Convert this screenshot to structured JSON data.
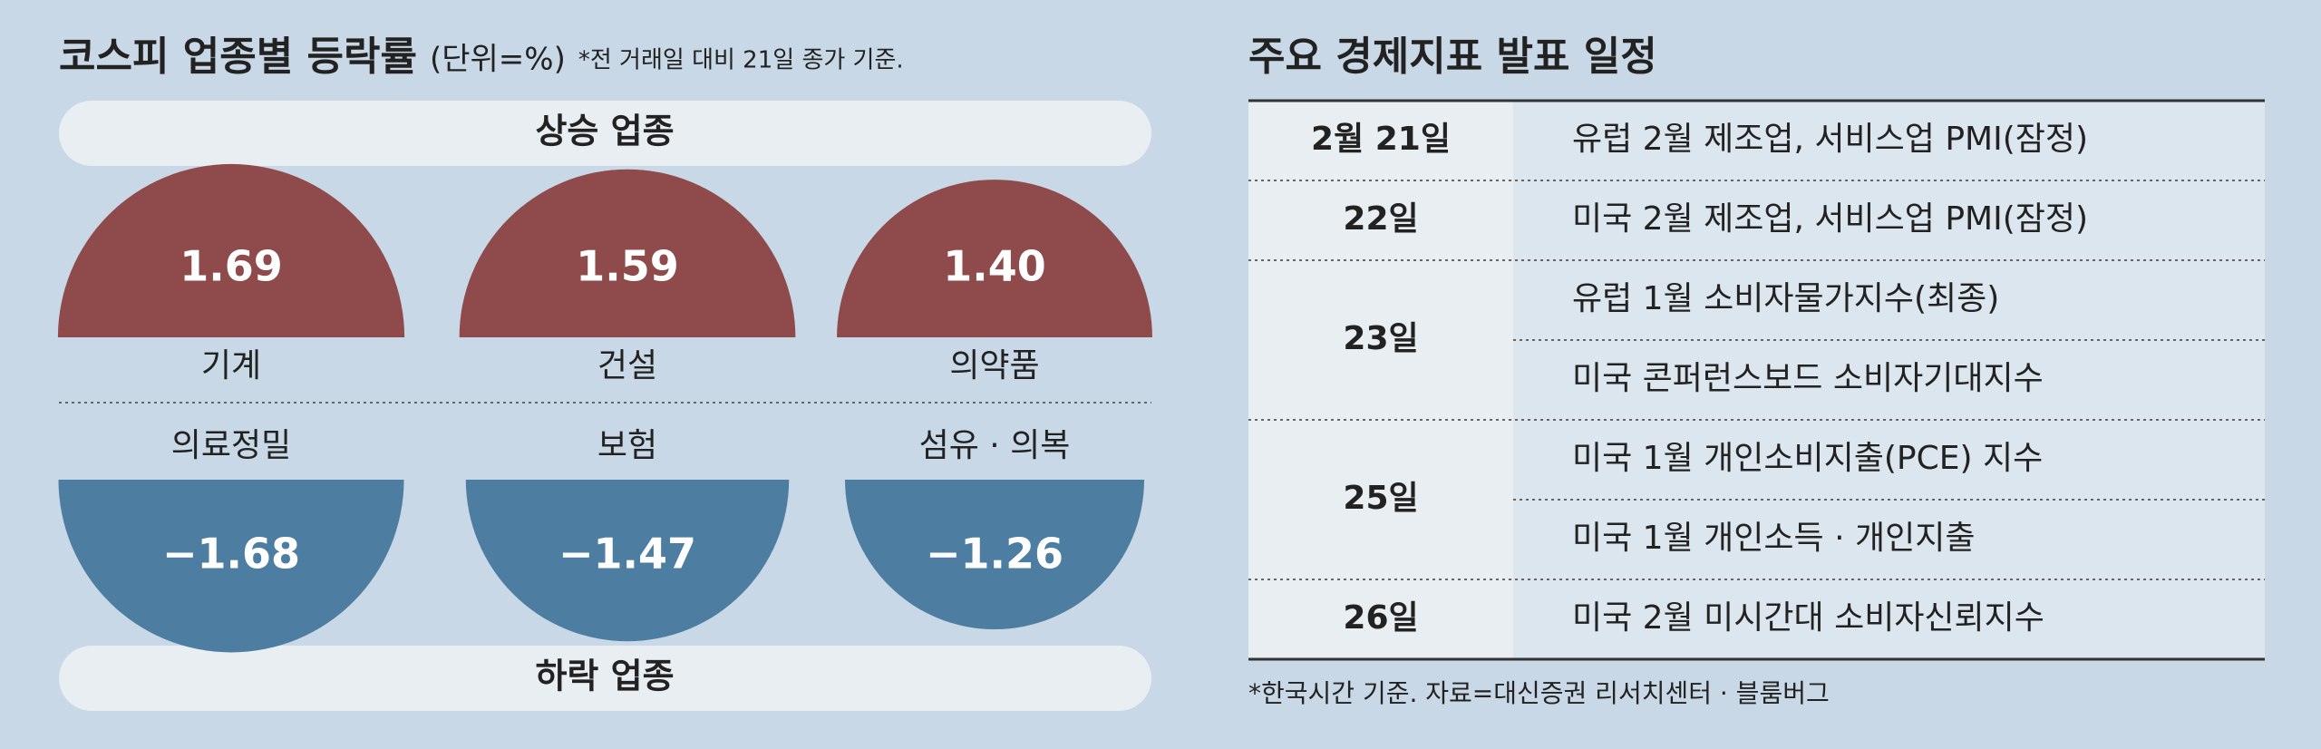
{
  "chart_data": {
    "type": "semicircle",
    "title": "코스피 업종별 등락률",
    "unit": "(단위=%)",
    "note": "*전 거래일 대비 21일 종가 기준.",
    "series": [
      {
        "name": "상승 업종",
        "color": "#8f4b4c",
        "categories": [
          "기계",
          "건설",
          "의약품"
        ],
        "values": [
          1.69,
          1.59,
          1.4
        ],
        "value_labels": [
          "1.69",
          "1.59",
          "1.40"
        ]
      },
      {
        "name": "하락 업종",
        "color": "#4d7ea1",
        "categories": [
          "의료정밀",
          "보험",
          "섬유 · 의복"
        ],
        "values": [
          -1.68,
          -1.47,
          -1.26
        ],
        "value_labels": [
          "−1.68",
          "−1.47",
          "−1.26"
        ]
      }
    ]
  },
  "table": {
    "title": "주요 경제지표 발표 일정",
    "rows": [
      {
        "date": "2월 21일",
        "items": [
          "유럽 2월 제조업, 서비스업 PMI(잠정)"
        ]
      },
      {
        "date": "22일",
        "items": [
          "미국 2월 제조업, 서비스업 PMI(잠정)"
        ]
      },
      {
        "date": "23일",
        "items": [
          "유럽 1월 소비자물가지수(최종)",
          "미국 콘퍼런스보드 소비자기대지수"
        ]
      },
      {
        "date": "25일",
        "items": [
          "미국 1월 개인소비지출(PCE) 지수",
          "미국 1월 개인소득 · 개인지출"
        ]
      },
      {
        "date": "26일",
        "items": [
          "미국 2월 미시간대 소비자신뢰지수"
        ]
      }
    ],
    "note": "*한국시간 기준. 자료=대신증권 리서치센터 · 블룸버그"
  }
}
